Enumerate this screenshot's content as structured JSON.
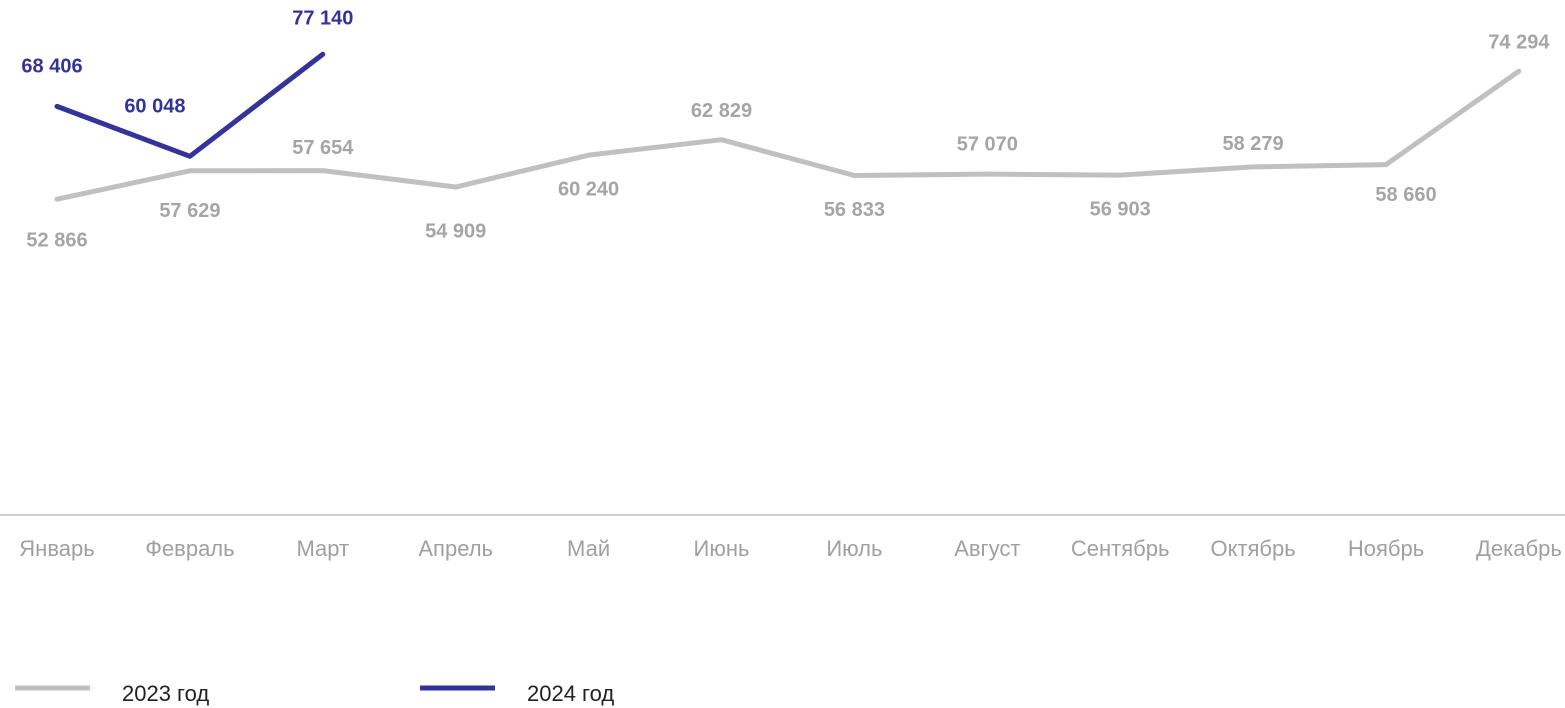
{
  "chart_data": {
    "type": "line",
    "categories": [
      "Январь",
      "Февраль",
      "Март",
      "Апрель",
      "Май",
      "Июнь",
      "Июль",
      "Август",
      "Сентябрь",
      "Октябрь",
      "Ноябрь",
      "Декабрь"
    ],
    "series": [
      {
        "name": "2023 год",
        "color": "#c0c0c0",
        "label_color": "#a5a5a5",
        "values": [
          52866,
          57629,
          57654,
          54909,
          60240,
          62829,
          56833,
          57070,
          56903,
          58279,
          58660,
          74294
        ],
        "value_labels": [
          "52 866",
          "57 629",
          "57 654",
          "54 909",
          "60 240",
          "62 829",
          "56 833",
          "57 070",
          "56 903",
          "58 279",
          "58 660",
          "74 294"
        ]
      },
      {
        "name": "2024 год",
        "color": "#333399",
        "label_color": "#333399",
        "values": [
          68406,
          60048,
          77140,
          null,
          null,
          null,
          null,
          null,
          null,
          null,
          null,
          null
        ],
        "value_labels": [
          "68 406",
          "60 048",
          "77 140",
          null,
          null,
          null,
          null,
          null,
          null,
          null,
          null,
          null
        ]
      }
    ],
    "ylim": [
      0,
      90000
    ],
    "grid": false,
    "legend": "bottom-left"
  }
}
